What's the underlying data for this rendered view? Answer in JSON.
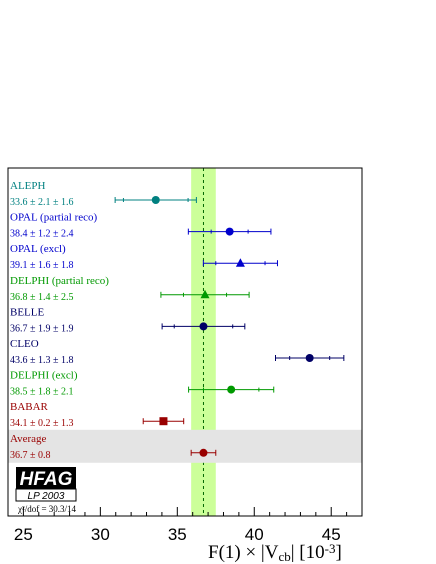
{
  "chart_data": {
    "type": "scatter",
    "title": "",
    "xlabel": "F(1) × |V_cb|  [10^-3]",
    "xlim": [
      24,
      47
    ],
    "xticks": [
      25,
      30,
      35,
      40,
      45
    ],
    "average_band": {
      "center": 36.7,
      "low": 35.9,
      "high": 37.5,
      "color": "#ccff99"
    },
    "series": [
      {
        "label": "ALEPH",
        "value_text": "33.6 ± 2.1 ± 1.6",
        "value": 33.6,
        "stat": 2.1,
        "syst": 1.6,
        "color": "#008080",
        "marker": "circle"
      },
      {
        "label": "OPAL (partial reco)",
        "value_text": "38.4 ± 1.2 ± 2.4",
        "value": 38.4,
        "stat": 1.2,
        "syst": 2.4,
        "color": "#0000cc",
        "marker": "circle"
      },
      {
        "label": "OPAL (excl)",
        "value_text": "39.1 ± 1.6 ± 1.8",
        "value": 39.1,
        "stat": 1.6,
        "syst": 1.8,
        "color": "#0000cc",
        "marker": "triangle"
      },
      {
        "label": "DELPHI (partial reco)",
        "value_text": "36.8 ± 1.4 ± 2.5",
        "value": 36.8,
        "stat": 1.4,
        "syst": 2.5,
        "color": "#009900",
        "marker": "triangle"
      },
      {
        "label": "BELLE",
        "value_text": "36.7 ± 1.9 ± 1.9",
        "value": 36.7,
        "stat": 1.9,
        "syst": 1.9,
        "color": "#000066",
        "marker": "circle"
      },
      {
        "label": "CLEO",
        "value_text": "43.6 ± 1.3 ± 1.8",
        "value": 43.6,
        "stat": 1.3,
        "syst": 1.8,
        "color": "#000066",
        "marker": "circle"
      },
      {
        "label": "DELPHI (excl)",
        "value_text": "38.5 ± 1.8 ± 2.1",
        "value": 38.5,
        "stat": 1.8,
        "syst": 2.1,
        "color": "#009900",
        "marker": "circle"
      },
      {
        "label": "BABAR",
        "value_text": "34.1 ± 0.2 ± 1.3",
        "value": 34.1,
        "stat": 0.2,
        "syst": 1.3,
        "color": "#990000",
        "marker": "square"
      },
      {
        "label": "Average",
        "value_text": "36.7 ± 0.8",
        "value": 36.7,
        "stat": 0.8,
        "syst": 0,
        "color": "#990000",
        "marker": "circle",
        "is_average": true
      }
    ],
    "logo": {
      "title": "HFAG",
      "subtitle": "LP 2003"
    },
    "chi2_text": "χ²/dof = 30.3/14"
  }
}
